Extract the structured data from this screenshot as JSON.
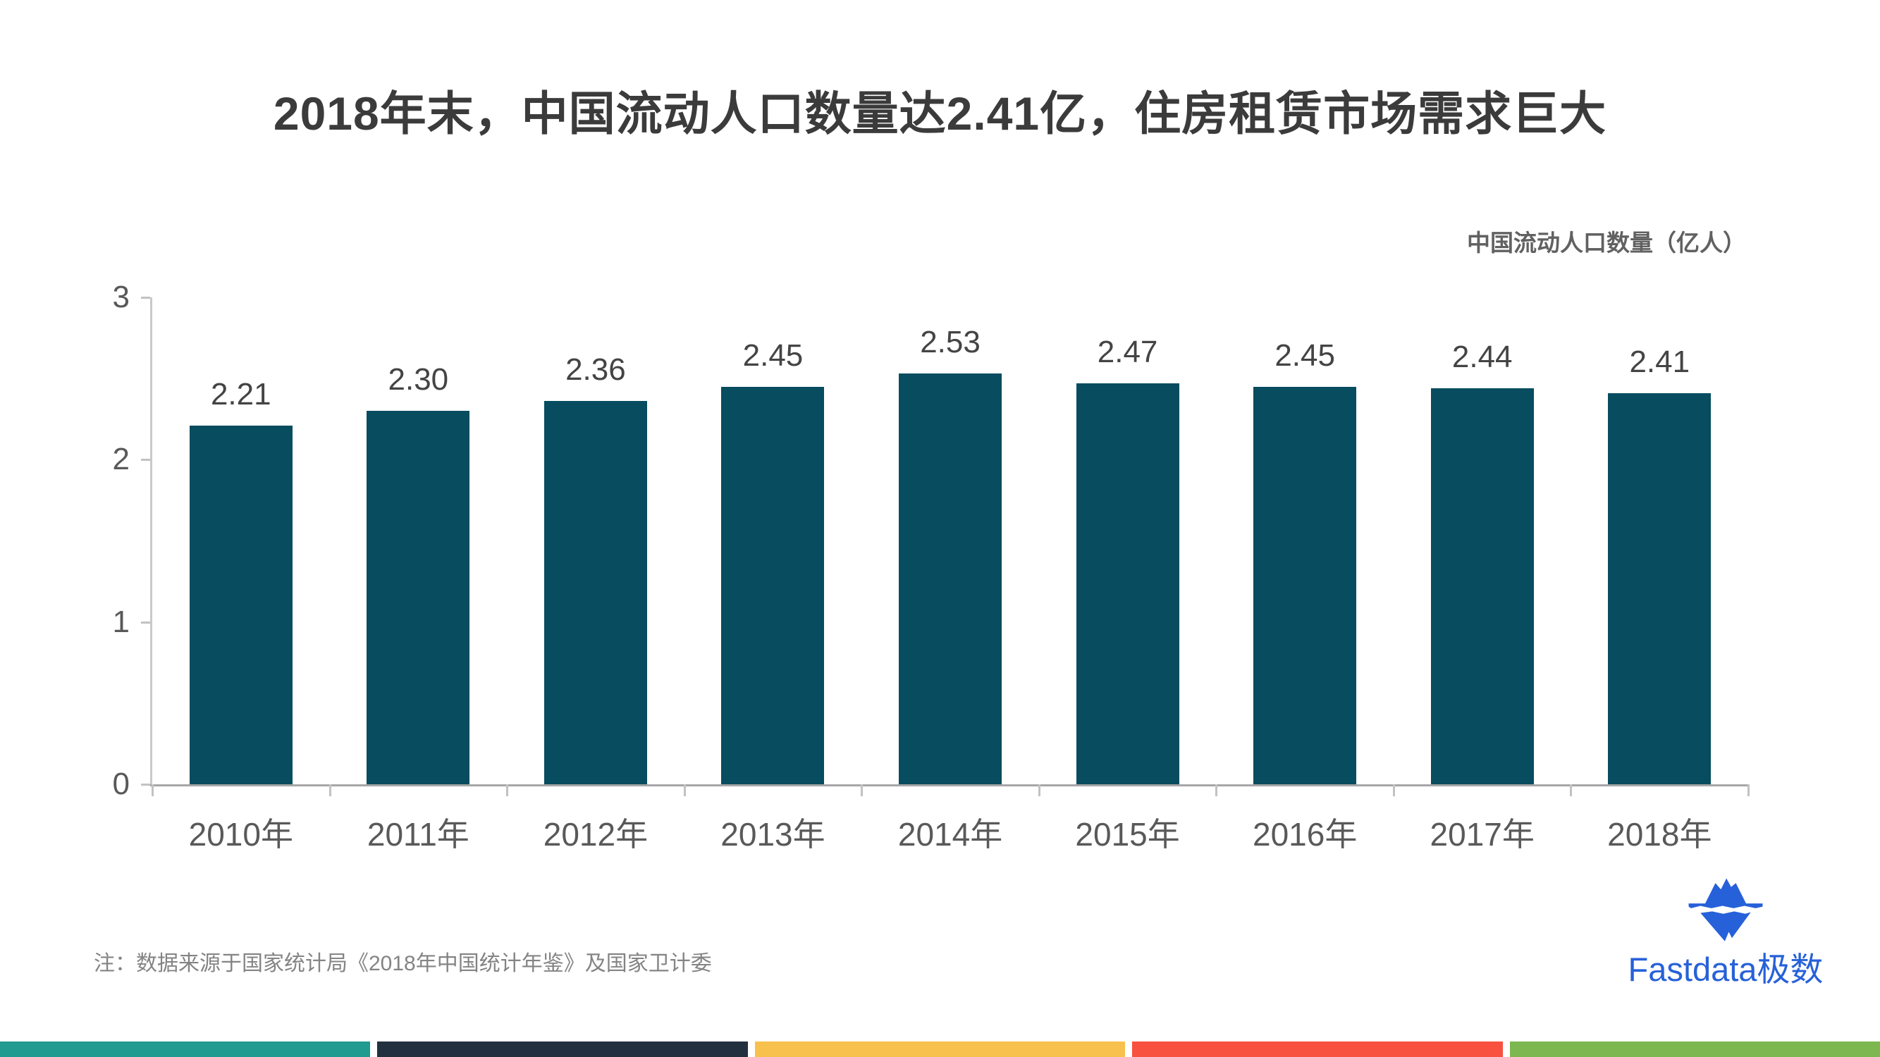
{
  "header": {
    "title": "2018年末，中国流动人口数量达2.41亿，住房租赁市场需求巨大"
  },
  "chart_data": {
    "type": "bar",
    "title": "2018年末，中国流动人口数量达2.41亿，住房租赁市场需求巨大",
    "series_label": "中国流动人口数量（亿人）",
    "categories": [
      "2010年",
      "2011年",
      "2012年",
      "2013年",
      "2014年",
      "2015年",
      "2016年",
      "2017年",
      "2018年"
    ],
    "values": [
      2.21,
      2.3,
      2.36,
      2.45,
      2.53,
      2.47,
      2.45,
      2.44,
      2.41
    ],
    "value_labels": [
      "2.21",
      "2.30",
      "2.36",
      "2.45",
      "2.53",
      "2.47",
      "2.45",
      "2.44",
      "2.41"
    ],
    "ylim": [
      0,
      3
    ],
    "yticks": [
      0,
      1,
      2,
      3
    ],
    "grid": false,
    "legend_position": "top-right",
    "bar_color": "#074c5f",
    "axis_label_color": "#595959",
    "value_label_color": "#444444"
  },
  "note": {
    "text": "注：数据来源于国家统计局《2018年中国统计年鉴》及国家卫计委"
  },
  "logo": {
    "text": "Fastdata极数",
    "icon": "iceberg-icon",
    "color": "#2761d9"
  },
  "footer": {
    "stripe_colors": [
      "#219a8f",
      "#22303f",
      "#f8c14d",
      "#f95140",
      "#7cb750"
    ]
  }
}
